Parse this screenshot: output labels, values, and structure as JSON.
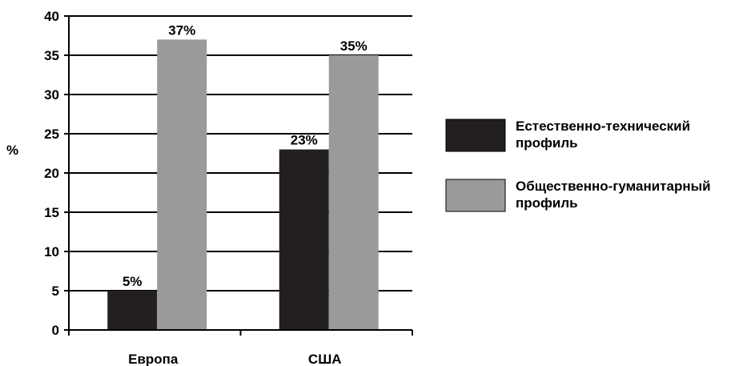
{
  "chart_data": {
    "type": "bar",
    "title": "",
    "xlabel": "",
    "ylabel": "%",
    "ylim": [
      0,
      40
    ],
    "yticks": [
      0,
      5,
      10,
      15,
      20,
      25,
      30,
      35,
      40
    ],
    "grid": true,
    "legend_position": "right",
    "categories": [
      "Европа",
      "США"
    ],
    "series": [
      {
        "name": "Естественно-технический профиль",
        "name_lines": [
          "Естественно-технический",
          "профиль"
        ],
        "color": "#231f20",
        "values": [
          5,
          23
        ],
        "labels": [
          "5%",
          "23%"
        ]
      },
      {
        "name": "Общественно-гуманитарный профиль",
        "name_lines": [
          "Общественно-гуманитарный",
          "профиль"
        ],
        "color": "#9a9a9a",
        "values": [
          37,
          35
        ],
        "labels": [
          "37%",
          "35%"
        ]
      }
    ]
  }
}
